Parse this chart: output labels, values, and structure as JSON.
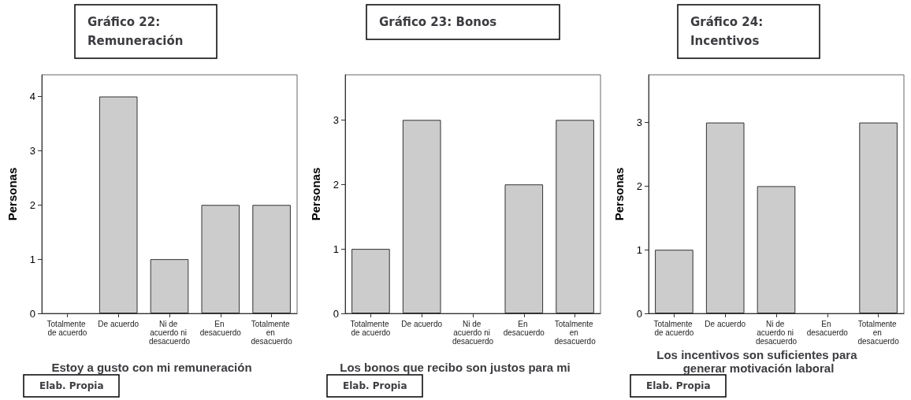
{
  "chart_data": [
    {
      "type": "bar",
      "title": "Gráfico 22: Remuneración",
      "xlabel": "Estoy a gusto con mi remuneración",
      "ylabel": "Personas",
      "categories": [
        "Totalmente de acuerdo",
        "De acuerdo",
        "Ni de acuerdo ni desacuerdo",
        "En desacuerdo",
        "Totalmente en desacuerdo"
      ],
      "values": [
        0,
        4,
        1,
        2,
        2
      ],
      "color": "#cccccc",
      "ylim": [
        0,
        4.4
      ],
      "yticks": [
        0,
        1,
        2,
        3,
        4
      ],
      "grid": false,
      "annotations": [
        "Elab. Propia"
      ]
    },
    {
      "type": "bar",
      "title": "Gráfico 23: Bonos",
      "xlabel": "Los bonos que recibo son justos para mi",
      "ylabel": "Personas",
      "categories": [
        "Totalmente de acuerdo",
        "De acuerdo",
        "Ni de acuerdo ni desacuerdo",
        "En desacuerdo",
        "Totalmente en desacuerdo"
      ],
      "values": [
        1,
        3,
        0,
        2,
        3
      ],
      "color": "#cccccc",
      "ylim": [
        0,
        3.7
      ],
      "yticks": [
        0,
        1,
        2,
        3
      ],
      "grid": false,
      "annotations": [
        "Elab. Propia"
      ]
    },
    {
      "type": "bar",
      "title": "Gráfico 24: Incentivos",
      "xlabel": "Los incentivos son suficientes para generar motivación laboral",
      "ylabel": "Personas",
      "categories": [
        "Totalmente de acuerdo",
        "De acuerdo",
        "Ni de acuerdo ni desacuerdo",
        "En desacuerdo",
        "Totalmente en desacuerdo"
      ],
      "values": [
        1,
        3,
        2,
        0,
        3
      ],
      "color": "#cccccc",
      "ylim": [
        0,
        3.75
      ],
      "yticks": [
        0,
        1,
        2,
        3
      ],
      "grid": false,
      "annotations": [
        "Elab. Propia"
      ]
    }
  ]
}
